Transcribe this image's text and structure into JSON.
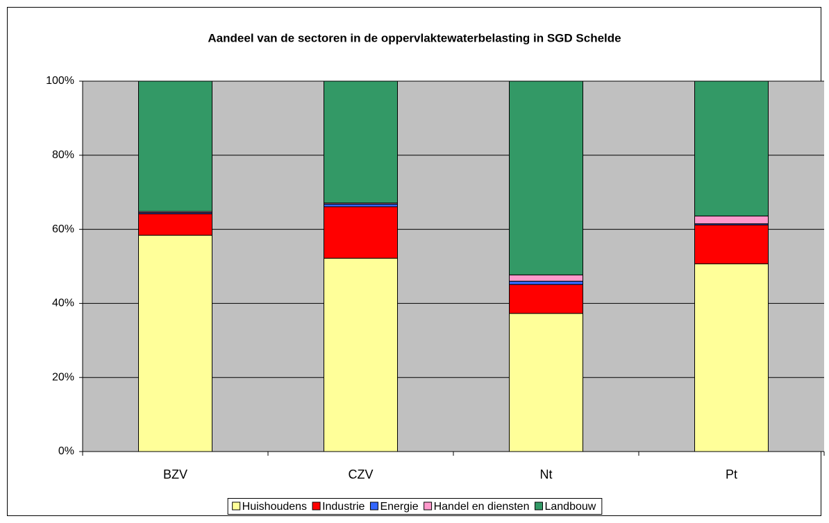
{
  "chart_data": {
    "type": "stacked-bar",
    "title": "Aandeel van de sectoren in de oppervlaktewaterbelasting in SGD Schelde",
    "categories": [
      "BZV",
      "CZV",
      "Nt",
      "Pt"
    ],
    "series": [
      {
        "name": "Huishoudens",
        "color": "#ffff99",
        "values": [
          58.4,
          52.2,
          37.3,
          50.7
        ]
      },
      {
        "name": "Industrie",
        "color": "#ff0000",
        "values": [
          5.8,
          13.9,
          7.8,
          10.5
        ]
      },
      {
        "name": "Energie",
        "color": "#3366ff",
        "values": [
          0.3,
          0.7,
          0.9,
          0.3
        ]
      },
      {
        "name": "Handel en diensten",
        "color": "#ff99cc",
        "values": [
          0.3,
          0.3,
          1.7,
          2.1
        ]
      },
      {
        "name": "Landbouw",
        "color": "#339966",
        "values": [
          35.2,
          32.9,
          52.3,
          36.4
        ]
      }
    ],
    "ylim": [
      0,
      100
    ],
    "yticks": [
      {
        "value": 0,
        "label": "0%"
      },
      {
        "value": 20,
        "label": "20%"
      },
      {
        "value": 40,
        "label": "40%"
      },
      {
        "value": 60,
        "label": "60%"
      },
      {
        "value": 80,
        "label": "80%"
      },
      {
        "value": 100,
        "label": "100%"
      }
    ],
    "grid": true,
    "plot_background": "#c0c0c0",
    "legend": "bottom"
  }
}
